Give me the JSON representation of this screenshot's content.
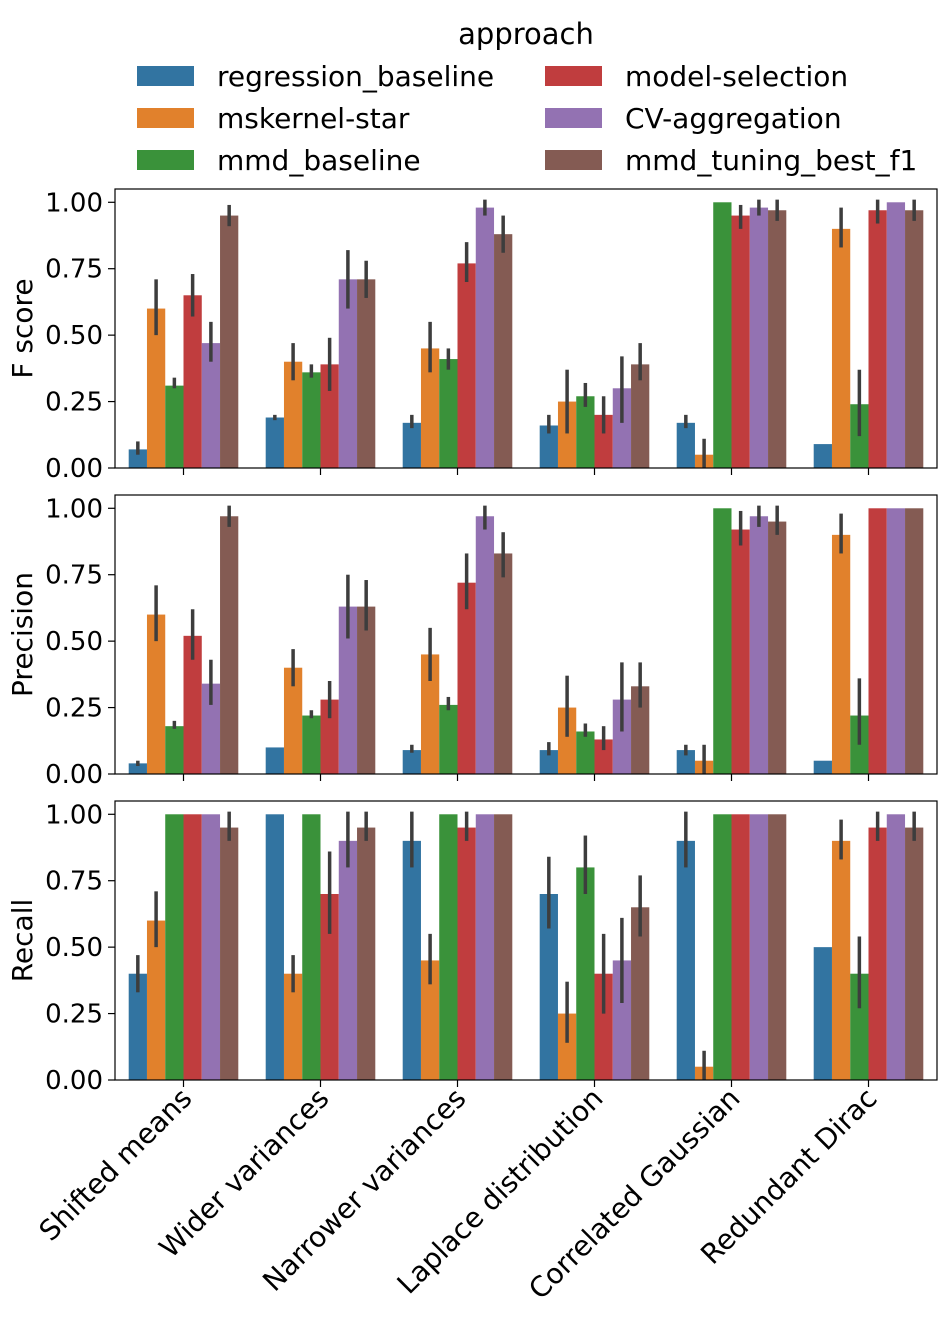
{
  "legend": {
    "title": "approach",
    "placement": "top-center",
    "entries": [
      {
        "name": "regression_baseline",
        "color": "#3274a1"
      },
      {
        "name": "mskernel-star",
        "color": "#e1812c"
      },
      {
        "name": "mmd_baseline",
        "color": "#3a923a"
      },
      {
        "name": "model-selection",
        "color": "#c03d3e"
      },
      {
        "name": "CV-aggregation",
        "color": "#9372b2"
      },
      {
        "name": "mmd_tuning_best_f1",
        "color": "#845b53"
      }
    ]
  },
  "chart_data": [
    {
      "type": "bar",
      "ylabel": "F score",
      "ylim": [
        0,
        1.05
      ],
      "yticks": [
        "0.00",
        "0.25",
        "0.50",
        "0.75",
        "1.00"
      ],
      "categories": [
        "Shifted means",
        "Wider variances",
        "Narrower variances",
        "Laplace distribution",
        "Correlated Gaussian",
        "Redundant Dirac"
      ],
      "series": [
        {
          "name": "regression_baseline",
          "values": [
            0.07,
            0.19,
            0.17,
            0.16,
            0.17,
            0.09
          ],
          "err_low": [
            0.05,
            0.18,
            0.15,
            0.13,
            0.15,
            null
          ],
          "err_high": [
            0.1,
            0.2,
            0.2,
            0.2,
            0.2,
            null
          ]
        },
        {
          "name": "mskernel-star",
          "values": [
            0.6,
            0.4,
            0.45,
            0.25,
            0.05,
            0.9
          ],
          "err_low": [
            0.5,
            0.33,
            0.36,
            0.13,
            0.0,
            0.83
          ],
          "err_high": [
            0.71,
            0.47,
            0.55,
            0.37,
            0.11,
            0.98
          ]
        },
        {
          "name": "mmd_baseline",
          "values": [
            0.31,
            0.36,
            0.41,
            0.27,
            1.0,
            0.24
          ],
          "err_low": [
            0.3,
            0.34,
            0.37,
            0.23,
            null,
            0.12
          ],
          "err_high": [
            0.34,
            0.39,
            0.45,
            0.32,
            null,
            0.37
          ]
        },
        {
          "name": "model-selection",
          "values": [
            0.65,
            0.39,
            0.77,
            0.2,
            0.95,
            0.97
          ],
          "err_low": [
            0.57,
            0.29,
            0.7,
            0.13,
            0.9,
            0.92
          ],
          "err_high": [
            0.73,
            0.49,
            0.85,
            0.27,
            0.99,
            1.01
          ]
        },
        {
          "name": "CV-aggregation",
          "values": [
            0.47,
            0.71,
            0.98,
            0.3,
            0.98,
            1.0
          ],
          "err_low": [
            0.4,
            0.6,
            0.95,
            0.17,
            0.95,
            null
          ],
          "err_high": [
            0.55,
            0.82,
            1.01,
            0.42,
            1.01,
            null
          ]
        },
        {
          "name": "mmd_tuning_best_f1",
          "values": [
            0.95,
            0.71,
            0.88,
            0.39,
            0.97,
            0.97
          ],
          "err_low": [
            0.91,
            0.64,
            0.81,
            0.33,
            0.93,
            0.93
          ],
          "err_high": [
            0.99,
            0.78,
            0.95,
            0.47,
            1.01,
            1.01
          ]
        }
      ]
    },
    {
      "type": "bar",
      "ylabel": "Precision",
      "ylim": [
        0,
        1.05
      ],
      "yticks": [
        "0.00",
        "0.25",
        "0.50",
        "0.75",
        "1.00"
      ],
      "categories": [
        "Shifted means",
        "Wider variances",
        "Narrower variances",
        "Laplace distribution",
        "Correlated Gaussian",
        "Redundant Dirac"
      ],
      "series": [
        {
          "name": "regression_baseline",
          "values": [
            0.04,
            0.1,
            0.09,
            0.09,
            0.09,
            0.05
          ],
          "err_low": [
            0.03,
            null,
            0.08,
            0.07,
            0.07,
            null
          ],
          "err_high": [
            0.05,
            null,
            0.11,
            0.12,
            0.11,
            null
          ]
        },
        {
          "name": "mskernel-star",
          "values": [
            0.6,
            0.4,
            0.45,
            0.25,
            0.05,
            0.9
          ],
          "err_low": [
            0.5,
            0.33,
            0.35,
            0.14,
            0.0,
            0.83
          ],
          "err_high": [
            0.71,
            0.47,
            0.55,
            0.37,
            0.11,
            0.98
          ]
        },
        {
          "name": "mmd_baseline",
          "values": [
            0.18,
            0.22,
            0.26,
            0.16,
            1.0,
            0.22
          ],
          "err_low": [
            0.17,
            0.21,
            0.24,
            0.14,
            null,
            0.11
          ],
          "err_high": [
            0.2,
            0.24,
            0.29,
            0.19,
            null,
            0.36
          ]
        },
        {
          "name": "model-selection",
          "values": [
            0.52,
            0.28,
            0.72,
            0.13,
            0.92,
            1.0
          ],
          "err_low": [
            0.43,
            0.21,
            0.62,
            0.09,
            0.86,
            null
          ],
          "err_high": [
            0.62,
            0.35,
            0.83,
            0.18,
            0.99,
            null
          ]
        },
        {
          "name": "CV-aggregation",
          "values": [
            0.34,
            0.63,
            0.97,
            0.28,
            0.97,
            1.0
          ],
          "err_low": [
            0.26,
            0.51,
            0.92,
            0.16,
            0.93,
            null
          ],
          "err_high": [
            0.43,
            0.75,
            1.01,
            0.42,
            1.01,
            null
          ]
        },
        {
          "name": "mmd_tuning_best_f1",
          "values": [
            0.97,
            0.63,
            0.83,
            0.33,
            0.95,
            1.0
          ],
          "err_low": [
            0.93,
            0.54,
            0.74,
            0.25,
            0.9,
            null
          ],
          "err_high": [
            1.01,
            0.73,
            0.91,
            0.42,
            1.01,
            null
          ]
        }
      ]
    },
    {
      "type": "bar",
      "ylabel": "Recall",
      "ylim": [
        0,
        1.05
      ],
      "yticks": [
        "0.00",
        "0.25",
        "0.50",
        "0.75",
        "1.00"
      ],
      "categories": [
        "Shifted means",
        "Wider variances",
        "Narrower variances",
        "Laplace distribution",
        "Correlated Gaussian",
        "Redundant Dirac"
      ],
      "series": [
        {
          "name": "regression_baseline",
          "values": [
            0.4,
            1.0,
            0.9,
            0.7,
            0.9,
            0.5
          ],
          "err_low": [
            0.33,
            null,
            0.8,
            0.57,
            0.8,
            null
          ],
          "err_high": [
            0.47,
            null,
            1.01,
            0.84,
            1.01,
            null
          ]
        },
        {
          "name": "mskernel-star",
          "values": [
            0.6,
            0.4,
            0.45,
            0.25,
            0.05,
            0.9
          ],
          "err_low": [
            0.5,
            0.33,
            0.36,
            0.14,
            0.0,
            0.83
          ],
          "err_high": [
            0.71,
            0.47,
            0.55,
            0.37,
            0.11,
            0.98
          ]
        },
        {
          "name": "mmd_baseline",
          "values": [
            1.0,
            1.0,
            1.0,
            0.8,
            1.0,
            0.4
          ],
          "err_low": [
            null,
            null,
            null,
            0.7,
            null,
            0.27
          ],
          "err_high": [
            null,
            null,
            null,
            0.92,
            null,
            0.54
          ]
        },
        {
          "name": "model-selection",
          "values": [
            1.0,
            0.7,
            0.95,
            0.4,
            1.0,
            0.95
          ],
          "err_low": [
            null,
            0.55,
            0.9,
            0.25,
            null,
            0.9
          ],
          "err_high": [
            null,
            0.86,
            1.01,
            0.55,
            null,
            1.01
          ]
        },
        {
          "name": "CV-aggregation",
          "values": [
            1.0,
            0.9,
            1.0,
            0.45,
            1.0,
            1.0
          ],
          "err_low": [
            null,
            0.8,
            null,
            0.29,
            null,
            null
          ],
          "err_high": [
            null,
            1.01,
            null,
            0.61,
            null,
            null
          ]
        },
        {
          "name": "mmd_tuning_best_f1",
          "values": [
            0.95,
            0.95,
            1.0,
            0.65,
            1.0,
            0.95
          ],
          "err_low": [
            0.9,
            0.9,
            null,
            0.54,
            null,
            0.9
          ],
          "err_high": [
            1.01,
            1.01,
            null,
            0.77,
            null,
            1.01
          ]
        }
      ]
    }
  ]
}
